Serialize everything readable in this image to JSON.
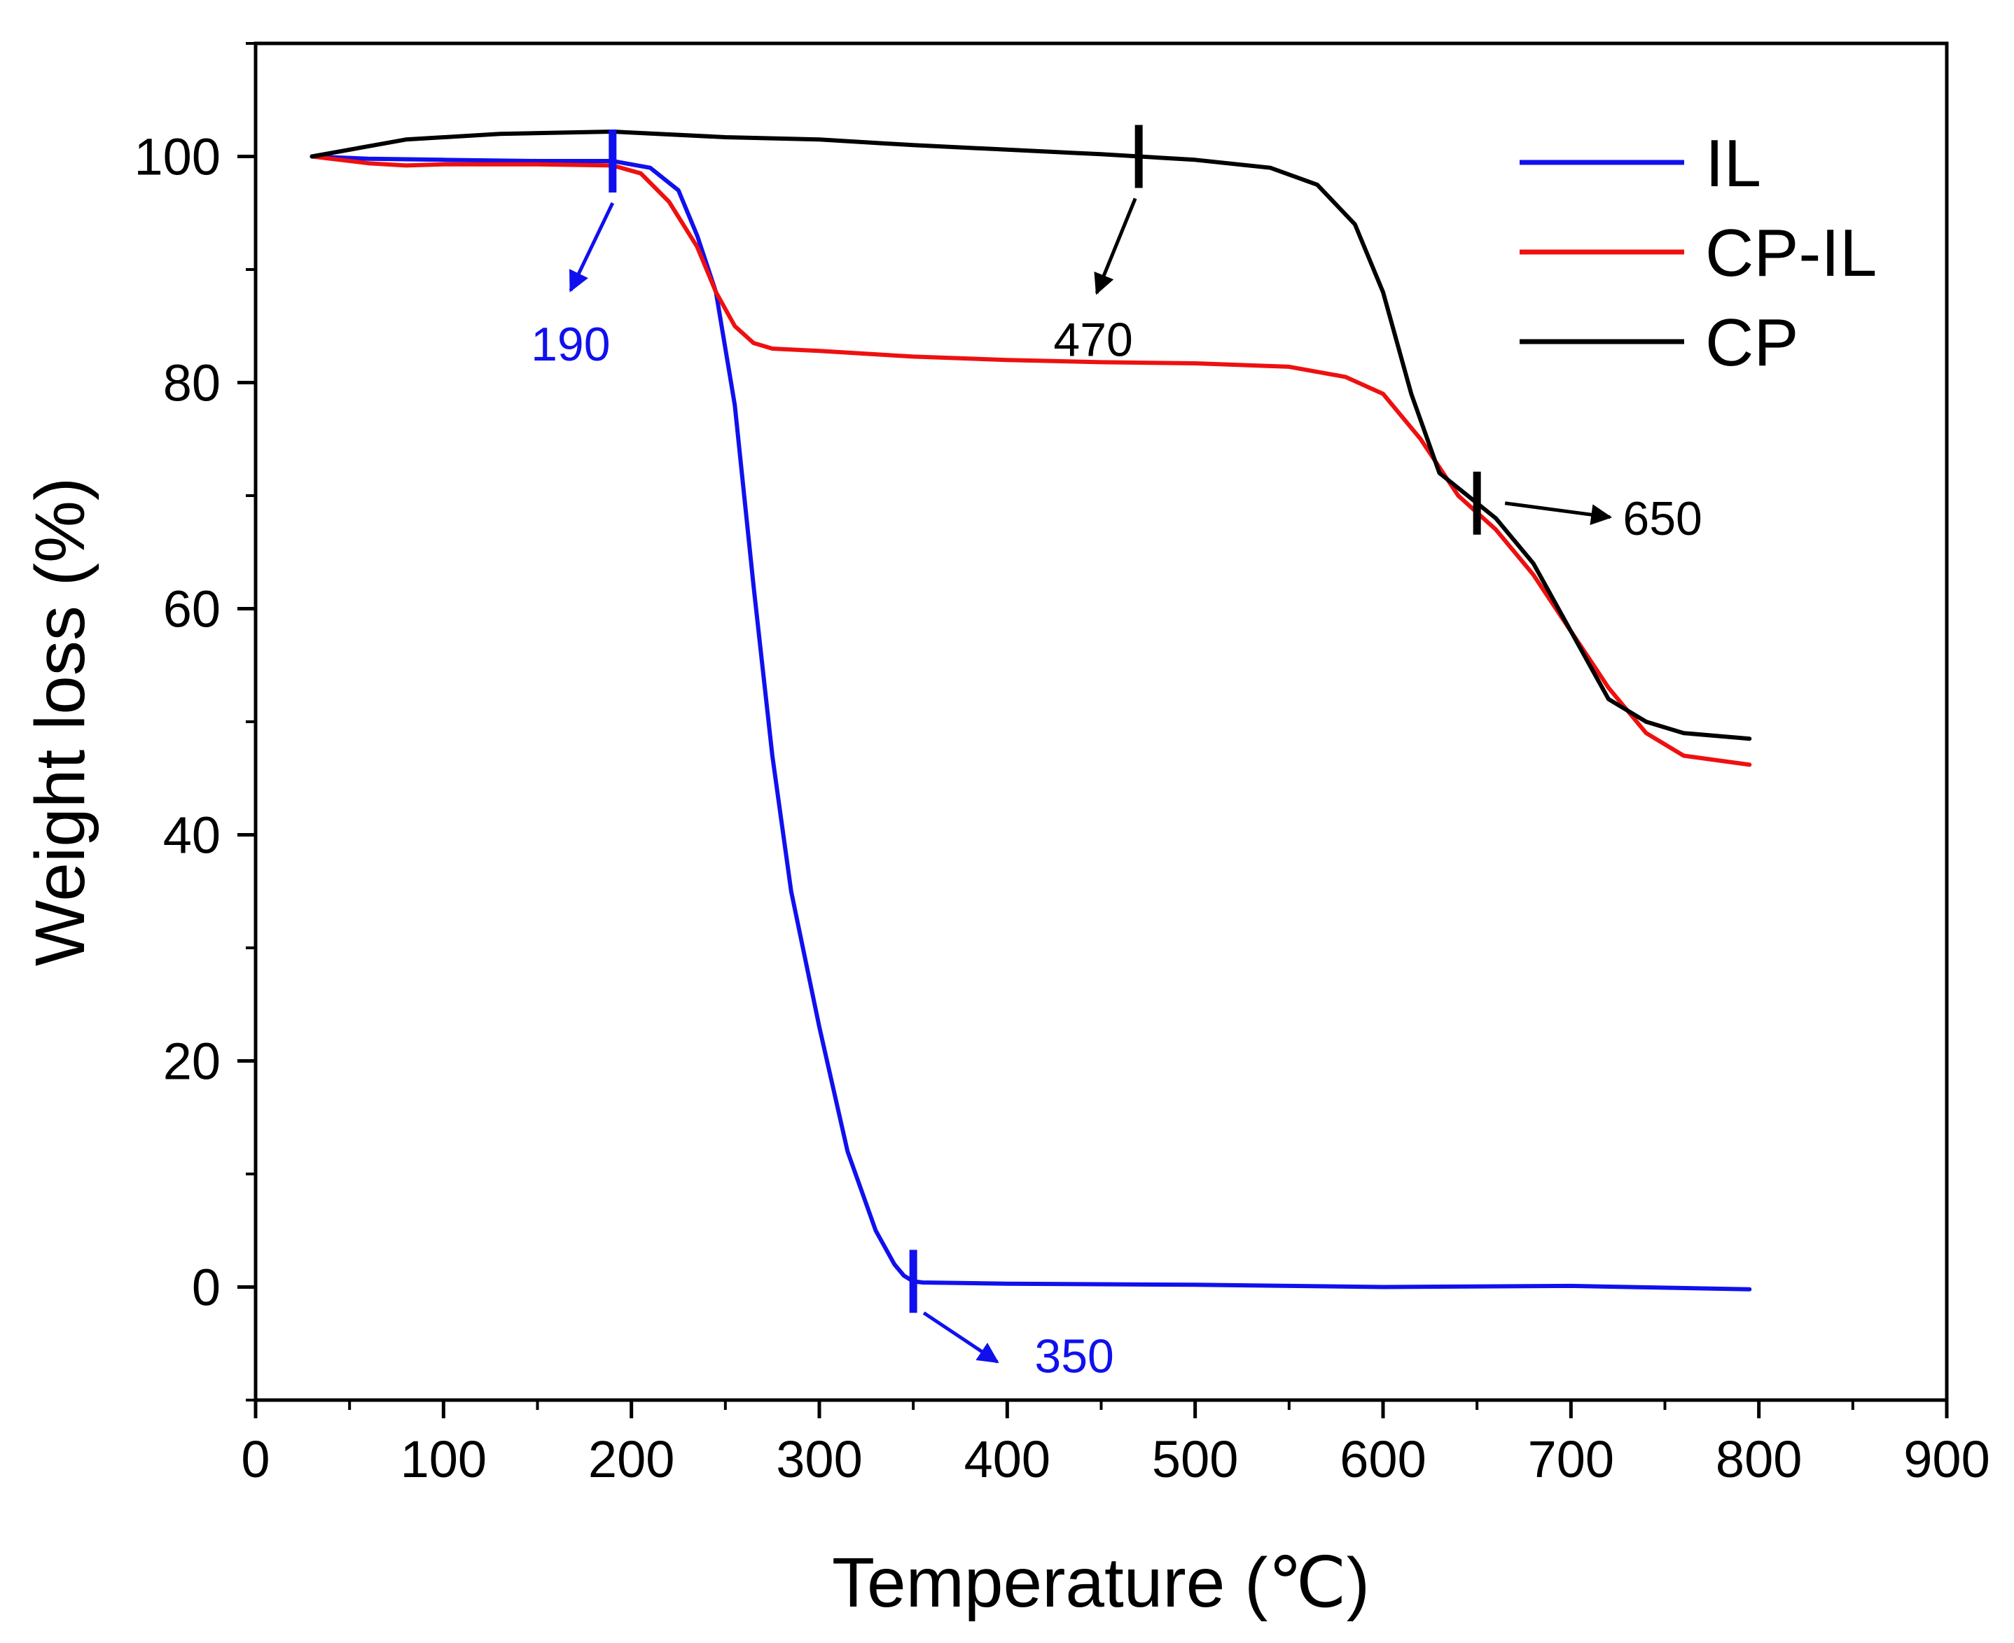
{
  "chart_data": {
    "type": "line",
    "title": "",
    "xlabel": "Temperature (℃)",
    "ylabel": "Weight loss (%)",
    "xlim": [
      0,
      900
    ],
    "ylim": [
      -10,
      110
    ],
    "x_major_ticks": [
      0,
      100,
      200,
      300,
      400,
      500,
      600,
      700,
      800,
      900
    ],
    "x_minor_ticks": [
      50,
      150,
      250,
      350,
      450,
      550,
      650,
      750,
      850
    ],
    "y_major_ticks": [
      0,
      20,
      40,
      60,
      80,
      100
    ],
    "y_minor_ticks": [
      -10,
      10,
      30,
      50,
      70,
      90,
      110
    ],
    "x_tick_labels": [
      "0",
      "100",
      "200",
      "300",
      "400",
      "500",
      "600",
      "700",
      "800",
      "900"
    ],
    "y_tick_labels": [
      "0",
      "20",
      "40",
      "60",
      "80",
      "100"
    ],
    "grid": false,
    "legend_position": "top-right",
    "series": [
      {
        "name": "IL",
        "color": "#1010ee",
        "x": [
          30,
          60,
          100,
          150,
          190,
          210,
          225,
          235,
          245,
          255,
          265,
          275,
          285,
          300,
          315,
          330,
          340,
          345,
          350,
          355,
          400,
          500,
          600,
          700,
          795
        ],
        "y": [
          100,
          99.8,
          99.7,
          99.6,
          99.6,
          99,
          97,
          93,
          88,
          78,
          62,
          47,
          35,
          23,
          12,
          5,
          2,
          1,
          0.5,
          0.4,
          0.3,
          0.2,
          0,
          0.1,
          -0.2
        ]
      },
      {
        "name": "CP-IL",
        "color": "#ee1010",
        "x": [
          30,
          60,
          80,
          100,
          150,
          190,
          205,
          220,
          235,
          245,
          255,
          265,
          275,
          300,
          350,
          400,
          450,
          500,
          550,
          580,
          600,
          620,
          640,
          660,
          680,
          700,
          720,
          740,
          760,
          795
        ],
        "y": [
          100,
          99.4,
          99.2,
          99.3,
          99.3,
          99.2,
          98.5,
          96,
          92,
          88,
          85,
          83.5,
          83,
          82.8,
          82.3,
          82,
          81.8,
          81.7,
          81.4,
          80.5,
          79,
          75,
          70,
          67,
          63,
          58,
          53,
          49,
          47,
          46.2
        ]
      },
      {
        "name": "CP",
        "color": "#000000",
        "x": [
          30,
          80,
          130,
          190,
          250,
          300,
          350,
          400,
          450,
          500,
          540,
          565,
          585,
          600,
          615,
          630,
          645,
          660,
          680,
          700,
          720,
          740,
          760,
          795
        ],
        "y": [
          100,
          101.5,
          102,
          102.2,
          101.7,
          101.5,
          101,
          100.6,
          100.2,
          99.7,
          99,
          97.5,
          94,
          88,
          79,
          72,
          70,
          68,
          64,
          58,
          52,
          50,
          49,
          48.5
        ]
      }
    ],
    "annotations": [
      {
        "label": "190",
        "x": 190,
        "color": "#1010ee",
        "series": "IL"
      },
      {
        "label": "350",
        "x": 350,
        "color": "#1010ee",
        "series": "IL"
      },
      {
        "label": "470",
        "x": 470,
        "color": "#000000",
        "series": "CP"
      },
      {
        "label": "650",
        "x": 650,
        "color": "#000000",
        "series": "CP"
      }
    ]
  }
}
